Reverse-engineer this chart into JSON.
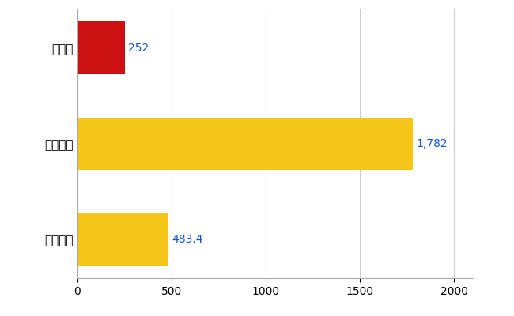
{
  "categories": [
    "全国平均",
    "全国最大",
    "滋賀県"
  ],
  "values": [
    483.4,
    1782,
    252
  ],
  "bar_colors": [
    "#F5C518",
    "#F5C518",
    "#CC1111"
  ],
  "label_values": [
    "483.4",
    "1,782",
    "252"
  ],
  "xlim": [
    0,
    2100
  ],
  "xticks": [
    0,
    500,
    1000,
    1500,
    2000
  ],
  "background_color": "#ffffff",
  "grid_color": "#cccccc",
  "bar_height": 0.55,
  "label_color": "#1155cc",
  "label_fontsize": 10,
  "tick_fontsize": 10,
  "ytick_fontsize": 11,
  "figsize": [
    6.5,
    4.0
  ],
  "dpi": 100
}
